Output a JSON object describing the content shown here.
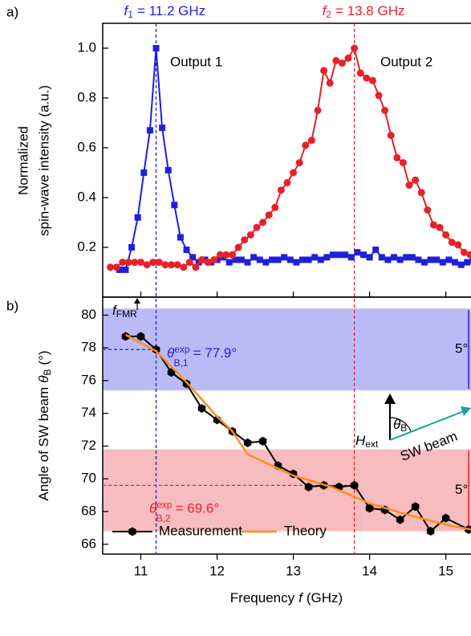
{
  "chart_data": [
    {
      "type": "line",
      "panel_label": "a)",
      "ylabel": [
        "Normalized",
        "spin-wave intensity (a.u.)"
      ],
      "xlim": [
        10.5,
        15.33
      ],
      "xticks": [
        11,
        12,
        13,
        14,
        15
      ],
      "ylim": [
        0,
        1.1
      ],
      "yticks": [
        0.2,
        0.4,
        0.6,
        0.8,
        {
          "value": 1,
          "label": "1.0"
        }
      ],
      "markers": [
        {
          "x": 11.2,
          "symbol": "f",
          "subscript": "1",
          "text": "= 11.2 GHz",
          "color": "#1f1fdc"
        },
        {
          "x": 13.8,
          "symbol": "f",
          "subscript": "2",
          "text": "= 13.8 GHz",
          "color": "#e8202a"
        }
      ],
      "series": [
        {
          "name": "Output 1",
          "color": "#1f1fdc",
          "marker": "square",
          "x": [
            10.72,
            10.8,
            10.88,
            10.96,
            11.04,
            11.12,
            11.2,
            11.28,
            11.36,
            11.44,
            11.52,
            11.6,
            11.68,
            11.76,
            11.84,
            11.92,
            12.0,
            12.08,
            12.16,
            12.24,
            12.32,
            12.4,
            12.48,
            12.56,
            12.64,
            12.72,
            12.8,
            12.88,
            12.96,
            13.04,
            13.12,
            13.2,
            13.28,
            13.36,
            13.44,
            13.52,
            13.6,
            13.68,
            13.76,
            13.84,
            13.92,
            14.0,
            14.08,
            14.16,
            14.24,
            14.32,
            14.4,
            14.48,
            14.56,
            14.64,
            14.72,
            14.8,
            14.88,
            14.96,
            15.04,
            15.12,
            15.2,
            15.28,
            15.36
          ],
          "values": [
            0.11,
            0.11,
            0.2,
            0.32,
            0.5,
            0.67,
            1.0,
            0.68,
            0.51,
            0.37,
            0.24,
            0.19,
            0.16,
            0.14,
            0.15,
            0.14,
            0.15,
            0.16,
            0.14,
            0.15,
            0.15,
            0.14,
            0.16,
            0.15,
            0.14,
            0.15,
            0.15,
            0.16,
            0.15,
            0.14,
            0.15,
            0.15,
            0.16,
            0.15,
            0.16,
            0.17,
            0.17,
            0.17,
            0.16,
            0.18,
            0.17,
            0.16,
            0.19,
            0.16,
            0.15,
            0.16,
            0.15,
            0.16,
            0.16,
            0.15,
            0.14,
            0.15,
            0.15,
            0.14,
            0.15,
            0.14,
            0.13,
            0.14,
            0.15
          ]
        },
        {
          "name": "Output 2",
          "color": "#e8202a",
          "marker": "circle",
          "x": [
            10.6,
            10.68,
            10.76,
            10.84,
            10.92,
            11.0,
            11.08,
            11.16,
            11.24,
            11.32,
            11.4,
            11.48,
            11.56,
            11.64,
            11.72,
            11.8,
            11.88,
            11.96,
            12.04,
            12.12,
            12.2,
            12.28,
            12.36,
            12.44,
            12.52,
            12.6,
            12.68,
            12.76,
            12.84,
            12.92,
            13.0,
            13.08,
            13.16,
            13.24,
            13.32,
            13.4,
            13.48,
            13.56,
            13.64,
            13.72,
            13.8,
            13.88,
            13.96,
            14.04,
            14.12,
            14.2,
            14.28,
            14.36,
            14.44,
            14.52,
            14.6,
            14.68,
            14.76,
            14.84,
            14.92,
            15.0,
            15.08,
            15.16,
            15.24,
            15.32
          ],
          "values": [
            0.12,
            0.12,
            0.14,
            0.14,
            0.14,
            0.14,
            0.13,
            0.14,
            0.14,
            0.13,
            0.13,
            0.13,
            0.12,
            0.14,
            0.12,
            0.15,
            0.14,
            0.15,
            0.17,
            0.17,
            0.17,
            0.2,
            0.23,
            0.25,
            0.28,
            0.3,
            0.33,
            0.36,
            0.43,
            0.46,
            0.5,
            0.54,
            0.61,
            0.63,
            0.75,
            0.91,
            0.86,
            0.95,
            0.94,
            0.96,
            1.0,
            0.9,
            0.88,
            0.87,
            0.81,
            0.75,
            0.65,
            0.56,
            0.54,
            0.45,
            0.47,
            0.42,
            0.35,
            0.29,
            0.28,
            0.25,
            0.22,
            0.21,
            0.18,
            0.17
          ]
        }
      ]
    },
    {
      "type": "line",
      "panel_label": "b)",
      "ylabel": {
        "text": "Angle of SW beam",
        "symbol": "θ",
        "subscript": "B",
        "unit": "(°)"
      },
      "xlabel": {
        "text": "Frequency",
        "symbol": "f",
        "unit": "(GHz)"
      },
      "xlim": [
        10.5,
        15.33
      ],
      "xticks": [
        11,
        12,
        13,
        14,
        15
      ],
      "ylim": [
        65.4,
        81.1
      ],
      "yticks": [
        66,
        68,
        70,
        72,
        74,
        76,
        78,
        80
      ],
      "bands": [
        {
          "range": [
            75.4,
            80.4
          ],
          "color": "#aeaef6",
          "label": "5°",
          "label_color": "#1f1fdc"
        },
        {
          "range": [
            66.8,
            71.8
          ],
          "color": "#f6b0b4",
          "label": "5°",
          "label_color": "#e8202a"
        }
      ],
      "reference": [
        {
          "x": 11.2,
          "y": 77.9,
          "color": "#1f1fdc",
          "symbol": "θ",
          "subscript": "B,1",
          "superscript": "exp",
          "text": "= 77.9°"
        },
        {
          "x": 13.8,
          "y": 69.6,
          "color": "#e8202a",
          "symbol": "θ",
          "subscript": "B,2",
          "superscript": "exp",
          "text": "= 69.6°"
        }
      ],
      "fmr_label": {
        "symbol": "f",
        "subscript": "FMR"
      },
      "inset": {
        "field": "H",
        "field_subscript": "ext",
        "angle": "θ",
        "angle_subscript": "B",
        "beam": "SW beam",
        "beam_color": "#13a3a0"
      },
      "legend": "lower left",
      "series": [
        {
          "name": "Measurement",
          "color": "#000000",
          "marker": "hexagon",
          "x": [
            10.8,
            11.0,
            11.2,
            11.4,
            11.6,
            11.8,
            12.0,
            12.2,
            12.4,
            12.6,
            12.8,
            13.0,
            13.2,
            13.4,
            13.6,
            13.8,
            14.0,
            14.2,
            14.4,
            14.6,
            14.8,
            15.0,
            15.3
          ],
          "values": [
            78.7,
            78.7,
            77.9,
            76.5,
            75.8,
            74.3,
            73.6,
            72.9,
            72.2,
            72.3,
            70.8,
            70.3,
            69.5,
            69.6,
            69.5,
            69.6,
            68.2,
            68.1,
            67.5,
            68.3,
            66.8,
            67.6,
            66.9
          ]
        },
        {
          "name": "Theory",
          "color": "#ff8c1a",
          "marker": "none",
          "x": [
            10.8,
            11.2,
            11.6,
            12.0,
            12.2,
            12.4,
            13.0,
            13.5,
            14.0,
            14.5,
            15.0,
            15.33
          ],
          "values": [
            78.8,
            77.8,
            75.9,
            73.8,
            72.9,
            71.5,
            70.2,
            69.5,
            68.5,
            67.8,
            67.2,
            66.9
          ]
        }
      ]
    }
  ]
}
